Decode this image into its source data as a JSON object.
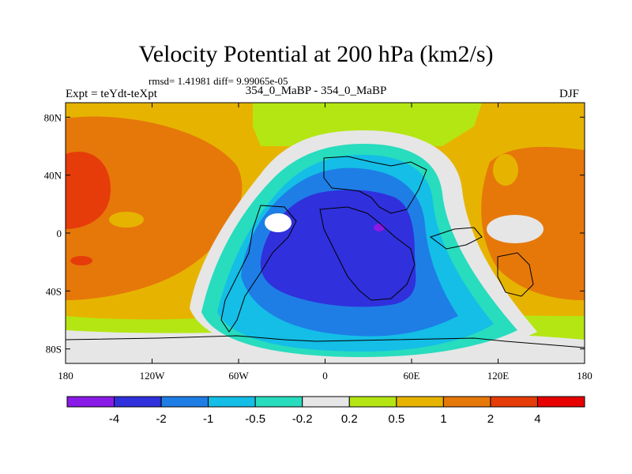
{
  "chart_data": {
    "type": "heatmap",
    "title": "Velocity Potential at 200 hPa (km2/s)",
    "stats_line": "rmsd= 1.41981 diff= 9.99065e-05",
    "left_label": "Expt = teYdt-teXpt",
    "center_label": "354_0_MaBP - 354_0_MaBP",
    "right_label": "DJF",
    "x_axis": {
      "range": [
        -180,
        180
      ],
      "ticks": [
        -180,
        -120,
        -60,
        0,
        60,
        120,
        180
      ],
      "tick_labels": [
        "180",
        "120W",
        "60W",
        "0",
        "60E",
        "120E",
        "180"
      ]
    },
    "y_axis": {
      "range": [
        -90,
        90
      ],
      "ticks": [
        80,
        40,
        0,
        -40,
        -80
      ],
      "tick_labels": [
        "80N",
        "40N",
        "0",
        "40S",
        "80S"
      ]
    },
    "contour_levels": [
      -4,
      -2,
      -1,
      -0.5,
      -0.2,
      0.2,
      0.5,
      1,
      2,
      4
    ],
    "colorbar_labels": [
      "-4",
      "-2",
      "-1",
      "-0.5",
      "-0.2",
      "0.2",
      "0.5",
      "1",
      "2",
      "4"
    ],
    "colorbar_colors": [
      "#8a1ae6",
      "#3030dc",
      "#1e7ee6",
      "#14bee6",
      "#28dcbe",
      "#e6e6e6",
      "#b4e614",
      "#e6b400",
      "#e6780a",
      "#e63c0a",
      "#e60000"
    ],
    "field_regions": [
      {
        "name": "negative minimum (Africa / Indian Ocean)",
        "approx_lon": 30,
        "approx_lat": 5,
        "level": "-4 to -2"
      },
      {
        "name": "positive maximum (central Pacific)",
        "approx_lon": -160,
        "approx_lat": 25,
        "level": "2 to 4"
      },
      {
        "name": "positive band (western Pacific)",
        "approx_lon": 135,
        "approx_lat": 10,
        "level": "1 to 2"
      }
    ]
  }
}
